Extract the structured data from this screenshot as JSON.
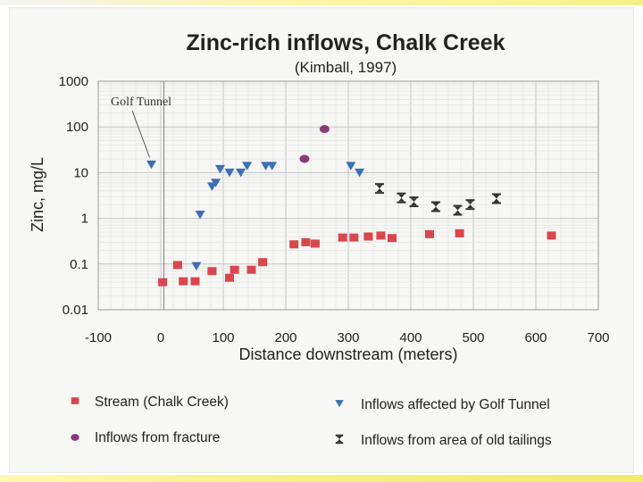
{
  "chart_data": {
    "type": "scatter",
    "title": "Zinc-rich inflows, Chalk Creek",
    "subtitle": "(Kimball, 1997)",
    "xlabel": "Distance downstream (meters)",
    "ylabel": "Zinc, mg/L",
    "xlim": [
      -100,
      700
    ],
    "ylim": [
      0.01,
      1000
    ],
    "y_scale": "log",
    "grid": true,
    "x_ticks": [
      "-100",
      "0",
      "100",
      "200",
      "300",
      "400",
      "500",
      "600",
      "700"
    ],
    "x_tick_values": [
      -100,
      0,
      100,
      200,
      300,
      400,
      500,
      600,
      700
    ],
    "y_ticks": [
      "1000",
      "100",
      "10",
      "1",
      "0.1",
      "0.01"
    ],
    "y_tick_values": [
      1000,
      100,
      10,
      1,
      0.1,
      0.01
    ],
    "reference_line_x": 5,
    "annotation": {
      "text": "Golf Tunnel",
      "points_to": [
        -15,
        15
      ]
    },
    "legend_position": "bottom",
    "series": [
      {
        "name": "Stream (Chalk Creek)",
        "marker": "square",
        "color": "#d9464b",
        "points": [
          [
            3,
            0.04
          ],
          [
            27,
            0.095
          ],
          [
            36,
            0.042
          ],
          [
            55,
            0.042
          ],
          [
            82,
            0.07
          ],
          [
            110,
            0.05
          ],
          [
            118,
            0.075
          ],
          [
            145,
            0.075
          ],
          [
            163,
            0.11
          ],
          [
            213,
            0.27
          ],
          [
            232,
            0.3
          ],
          [
            247,
            0.28
          ],
          [
            291,
            0.38
          ],
          [
            309,
            0.38
          ],
          [
            332,
            0.4
          ],
          [
            352,
            0.42
          ],
          [
            370,
            0.37
          ],
          [
            430,
            0.45
          ],
          [
            478,
            0.47
          ],
          [
            625,
            0.42
          ]
        ]
      },
      {
        "name": "Inflows affected by Golf Tunnel",
        "marker": "triangle-down",
        "color": "#3b6fb6",
        "points": [
          [
            -15,
            15
          ],
          [
            57,
            0.09
          ],
          [
            63,
            1.2
          ],
          [
            82,
            5
          ],
          [
            88,
            6
          ],
          [
            95,
            12
          ],
          [
            110,
            10
          ],
          [
            128,
            10
          ],
          [
            138,
            14
          ],
          [
            168,
            14
          ],
          [
            178,
            14
          ],
          [
            304,
            14
          ],
          [
            318,
            10
          ]
        ]
      },
      {
        "name": "Inflows from fracture",
        "marker": "circle",
        "color": "#8a3a7a",
        "points": [
          [
            230,
            20
          ],
          [
            262,
            90
          ]
        ]
      },
      {
        "name": "Inflows from area of old tailings",
        "marker": "hourglass",
        "color": "#333333",
        "points": [
          [
            350,
            4.5
          ],
          [
            385,
            2.8
          ],
          [
            405,
            2.3
          ],
          [
            440,
            1.8
          ],
          [
            475,
            1.5
          ],
          [
            495,
            2
          ],
          [
            537,
            2.7
          ]
        ]
      }
    ]
  }
}
